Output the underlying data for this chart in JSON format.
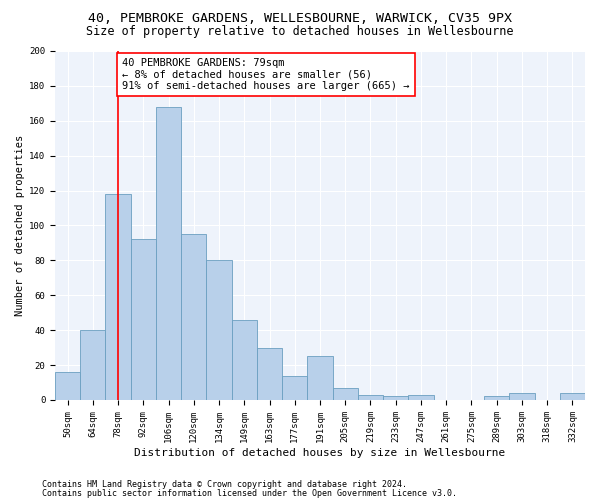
{
  "title": "40, PEMBROKE GARDENS, WELLESBOURNE, WARWICK, CV35 9PX",
  "subtitle": "Size of property relative to detached houses in Wellesbourne",
  "xlabel": "Distribution of detached houses by size in Wellesbourne",
  "ylabel": "Number of detached properties",
  "categories": [
    "50sqm",
    "64sqm",
    "78sqm",
    "92sqm",
    "106sqm",
    "120sqm",
    "134sqm",
    "149sqm",
    "163sqm",
    "177sqm",
    "191sqm",
    "205sqm",
    "219sqm",
    "233sqm",
    "247sqm",
    "261sqm",
    "275sqm",
    "289sqm",
    "303sqm",
    "318sqm",
    "332sqm"
  ],
  "values": [
    16,
    40,
    118,
    92,
    168,
    95,
    80,
    46,
    30,
    14,
    25,
    7,
    3,
    2,
    3,
    0,
    0,
    2,
    4,
    0,
    4
  ],
  "bar_color": "#b8d0ea",
  "bar_edge_color": "#6a9fc0",
  "red_line_index": 2,
  "annotation_line1": "40 PEMBROKE GARDENS: 79sqm",
  "annotation_line2": "← 8% of detached houses are smaller (56)",
  "annotation_line3": "91% of semi-detached houses are larger (665) →",
  "annotation_box_color": "white",
  "annotation_box_edge_color": "red",
  "red_line_color": "red",
  "ylim": [
    0,
    200
  ],
  "yticks": [
    0,
    20,
    40,
    60,
    80,
    100,
    120,
    140,
    160,
    180,
    200
  ],
  "bg_color": "#eef3fb",
  "footer_line1": "Contains HM Land Registry data © Crown copyright and database right 2024.",
  "footer_line2": "Contains public sector information licensed under the Open Government Licence v3.0.",
  "title_fontsize": 9.5,
  "subtitle_fontsize": 8.5,
  "xlabel_fontsize": 8,
  "ylabel_fontsize": 7.5,
  "tick_fontsize": 6.5,
  "annotation_fontsize": 7.5,
  "footer_fontsize": 6
}
